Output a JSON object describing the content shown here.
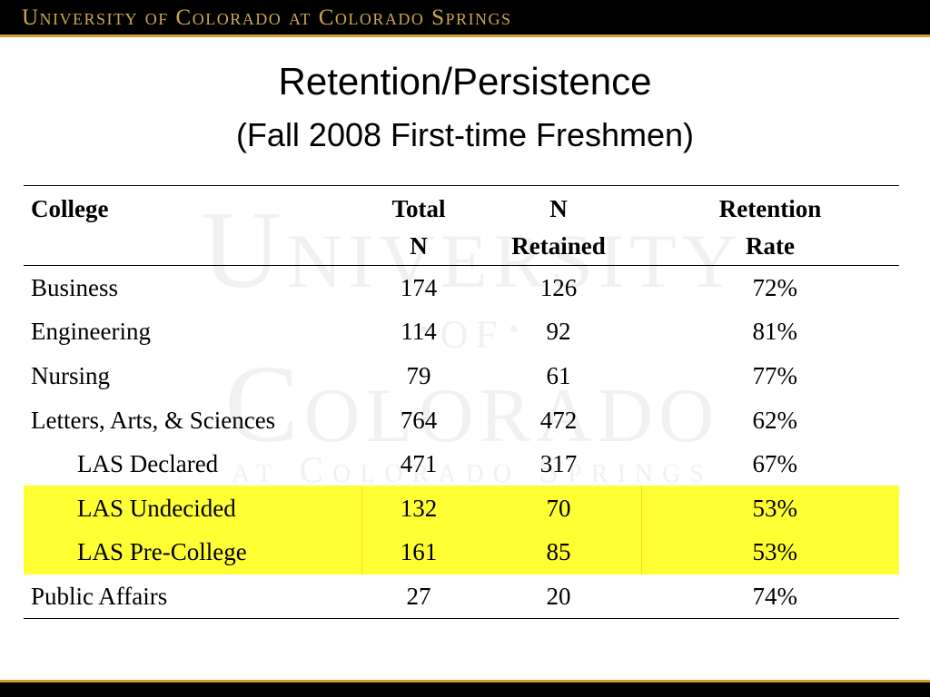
{
  "banner": {
    "text": "University of Colorado at Colorado Springs"
  },
  "slide": {
    "title": "Retention/Persistence",
    "subtitle": "(Fall 2008 First-time Freshmen)"
  },
  "watermark": {
    "line1": "University",
    "line2": "·of·",
    "line3": "Colorado",
    "line4": "at Colorado Springs"
  },
  "table": {
    "headers": {
      "college": "College",
      "total_line1": "Total",
      "total_line2": "N",
      "retained_line1": "N",
      "retained_line2": "Retained",
      "rate_line1": "Retention",
      "rate_line2": "Rate"
    },
    "rows": [
      {
        "college": "Business",
        "total": "174",
        "retained": "126",
        "rate": "72%",
        "indent": false,
        "highlight": false
      },
      {
        "college": "Engineering",
        "total": "114",
        "retained": "92",
        "rate": "81%",
        "indent": false,
        "highlight": false
      },
      {
        "college": "Nursing",
        "total": "79",
        "retained": "61",
        "rate": "77%",
        "indent": false,
        "highlight": false
      },
      {
        "college": "Letters, Arts, & Sciences",
        "total": "764",
        "retained": "472",
        "rate": "62%",
        "indent": false,
        "highlight": false
      },
      {
        "college": "LAS Declared",
        "total": "471",
        "retained": "317",
        "rate": "67%",
        "indent": true,
        "highlight": false
      },
      {
        "college": "LAS Undecided",
        "total": "132",
        "retained": "70",
        "rate": "53%",
        "indent": true,
        "highlight": true
      },
      {
        "college": "LAS Pre-College",
        "total": "161",
        "retained": "85",
        "rate": "53%",
        "indent": true,
        "highlight": true
      },
      {
        "college": "Public Affairs",
        "total": "27",
        "retained": "20",
        "rate": "74%",
        "indent": false,
        "highlight": false
      }
    ]
  },
  "colors": {
    "banner_background": "#000000",
    "banner_text": "#C9A84C",
    "gold_rule": "#CFA02A",
    "highlight": "#FFFF33",
    "watermark": "#F1F1F1"
  }
}
